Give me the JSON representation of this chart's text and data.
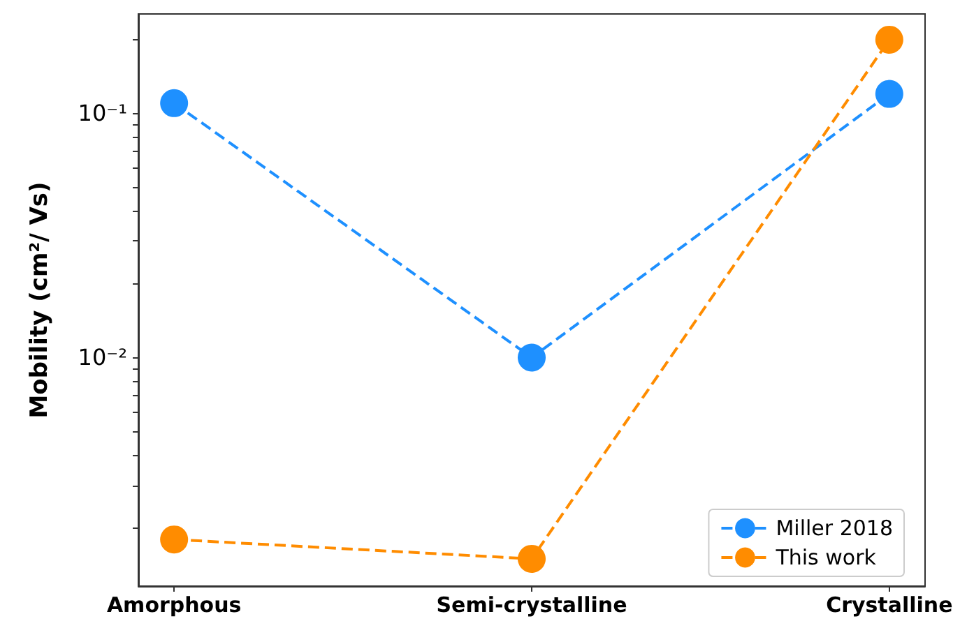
{
  "chart_data": {
    "type": "line",
    "ylabel": "Mobility (cm²/ Vs)",
    "categories": [
      "Amorphous",
      "Semi-crystalline",
      "Crystalline"
    ],
    "series": [
      {
        "name": "Miller 2018",
        "color": "#1e90ff",
        "values": [
          0.11,
          0.01,
          0.12
        ]
      },
      {
        "name": "This work",
        "color": "#ff8c00",
        "values": [
          0.0018,
          0.0015,
          0.2
        ]
      }
    ],
    "log": "y",
    "ylim": [
      0.00116,
      0.255
    ],
    "yticks": [
      {
        "value": 0.002,
        "label": null
      },
      {
        "value": 0.003,
        "label": null
      },
      {
        "value": 0.004,
        "label": null
      },
      {
        "value": 0.005,
        "label": null
      },
      {
        "value": 0.006,
        "label": null
      },
      {
        "value": 0.007,
        "label": null
      },
      {
        "value": 0.008,
        "label": null
      },
      {
        "value": 0.009,
        "label": null
      },
      {
        "value": 0.01,
        "label": "10⁻²"
      },
      {
        "value": 0.02,
        "label": null
      },
      {
        "value": 0.03,
        "label": null
      },
      {
        "value": 0.04,
        "label": null
      },
      {
        "value": 0.05,
        "label": null
      },
      {
        "value": 0.06,
        "label": null
      },
      {
        "value": 0.07,
        "label": null
      },
      {
        "value": 0.08,
        "label": null
      },
      {
        "value": 0.09,
        "label": null
      },
      {
        "value": 0.1,
        "label": "10⁻¹"
      },
      {
        "value": 0.2,
        "label": null
      }
    ],
    "legend": "bottom right",
    "marker": "circle",
    "line_style": "dashed"
  }
}
